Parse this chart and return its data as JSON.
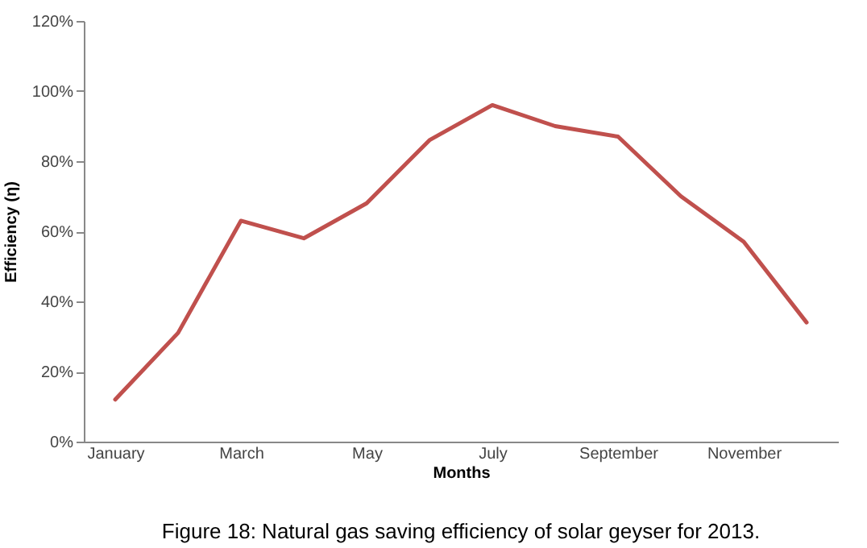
{
  "chart_data": {
    "type": "line",
    "xlabel": "Months",
    "ylabel": "Efficiency (η)",
    "categories": [
      "January",
      null,
      "March",
      null,
      "May",
      null,
      "July",
      null,
      "September",
      null,
      "November",
      null
    ],
    "series": [
      {
        "color": "#c0504d",
        "values": [
          12,
          31,
          63,
          58,
          68,
          86,
          96,
          90,
          87,
          70,
          57,
          34
        ]
      }
    ],
    "ylim": [
      0,
      120
    ],
    "yticks": [
      {
        "value": 0,
        "label": "0%"
      },
      {
        "value": 20,
        "label": "20%"
      },
      {
        "value": 40,
        "label": "40%"
      },
      {
        "value": 60,
        "label": "60%"
      },
      {
        "value": 80,
        "label": "80%"
      },
      {
        "value": 100,
        "label": "100%"
      },
      {
        "value": 120,
        "label": "120%"
      }
    ],
    "grid": false,
    "marker": "none",
    "line_style": "solid",
    "annotations": [
      "Figure 18: Natural gas saving efficiency of solar geyser for 2013."
    ]
  }
}
